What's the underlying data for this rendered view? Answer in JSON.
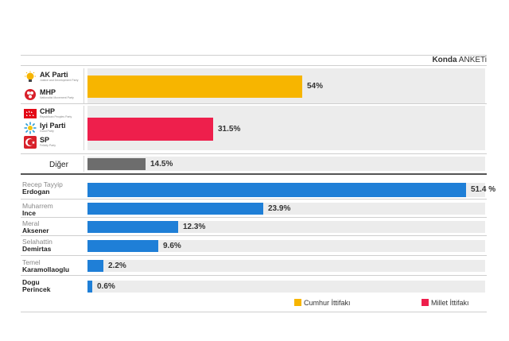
{
  "header": {
    "source_bold": "Konda",
    "source_rest": "ANKETi"
  },
  "colors": {
    "cumhur": "#f7b500",
    "millet": "#ee1f4c",
    "other": "#6d6d6d",
    "candidate": "#1f7fd7",
    "track": "#ececec"
  },
  "alliances": {
    "cumhur_parties": [
      {
        "name": "AK Parti",
        "sub": "Justice and Development Party",
        "icon": "bulb-icon"
      },
      {
        "name": "MHP",
        "sub": "Nationalist Movement Party",
        "icon": "crescent-icon"
      }
    ],
    "millet_parties": [
      {
        "name": "CHP",
        "sub": "Republican Peoples Party",
        "icon": "arrows-flag-icon"
      },
      {
        "name": "Iyi Parti",
        "sub": "Good Party",
        "icon": "sun-icon"
      },
      {
        "name": "SP",
        "sub": "Felicity Party",
        "icon": "crescent-star-icon"
      }
    ],
    "other_label": "Diğer"
  },
  "legend": {
    "cumhur": "Cumhur İttifakı",
    "millet": "Millet İttifakı"
  },
  "chart_data": [
    {
      "type": "bar",
      "orientation": "horizontal",
      "categories": [
        "Cumhur İttifakı",
        "Millet İttifakı",
        "Diğer"
      ],
      "values": [
        54,
        31.5,
        14.5
      ],
      "labels": [
        "54%",
        "31.5%",
        "14.5%"
      ],
      "xlim": [
        0,
        100
      ],
      "colors": [
        "#f7b500",
        "#ee1f4c",
        "#6d6d6d"
      ]
    },
    {
      "type": "bar",
      "orientation": "horizontal",
      "categories": [
        {
          "first": "Recep Tayyip",
          "last": "Erdogan"
        },
        {
          "first": "Muharrem",
          "last": "Ince"
        },
        {
          "first": "Meral",
          "last": "Aksener"
        },
        {
          "first": "Selahattin",
          "last": "Demirtas"
        },
        {
          "first": "Temel",
          "last": "Karamollaoglu"
        },
        {
          "first": "Dogu",
          "last": "Perincek"
        }
      ],
      "values": [
        51.4,
        23.9,
        12.3,
        9.6,
        2.2,
        0.6
      ],
      "labels": [
        "51.4 %",
        "23.9%",
        "12.3%",
        "9.6%",
        "2.2%",
        "0.6%"
      ],
      "xlim": [
        0,
        54
      ],
      "color": "#1f7fd7"
    }
  ]
}
